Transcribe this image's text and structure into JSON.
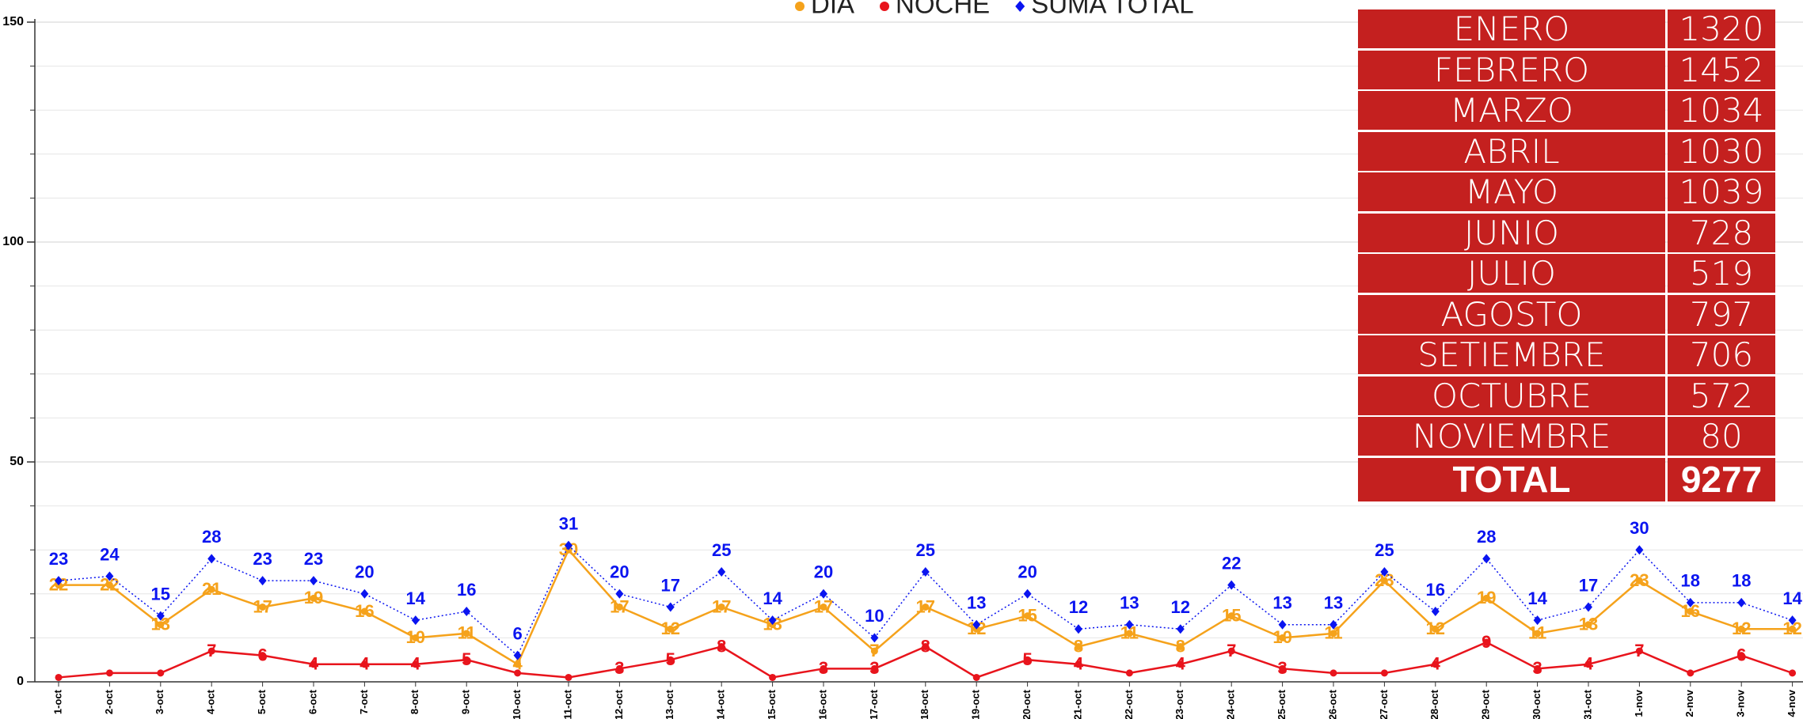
{
  "chart_data": {
    "type": "line",
    "legend": "top",
    "categories": [
      "1-oct",
      "2-oct",
      "3-oct",
      "4-oct",
      "5-oct",
      "6-oct",
      "7-oct",
      "8-oct",
      "9-oct",
      "10-oct",
      "11-oct",
      "12-oct",
      "13-oct",
      "14-oct",
      "15-oct",
      "16-oct",
      "17-oct",
      "18-oct",
      "19-oct",
      "20-oct",
      "21-oct",
      "22-oct",
      "23-oct",
      "24-oct",
      "25-oct",
      "26-oct",
      "27-oct",
      "28-oct",
      "29-oct",
      "30-oct",
      "31-oct",
      "1-nov",
      "2-nov",
      "3-nov",
      "4-nov"
    ],
    "series": [
      {
        "name": "DIA",
        "color": "#f5a21b",
        "marker": "circle",
        "line_style": "solid",
        "values": [
          22,
          22,
          13,
          21,
          17,
          19,
          16,
          10,
          11,
          4,
          30,
          17,
          12,
          17,
          13,
          17,
          7,
          17,
          12,
          15,
          8,
          11,
          8,
          15,
          10,
          11,
          23,
          12,
          19,
          11,
          13,
          23,
          16,
          12,
          12
        ]
      },
      {
        "name": "NOCHE",
        "color": "#e8141c",
        "marker": "circle",
        "line_style": "solid",
        "values": [
          1,
          2,
          2,
          7,
          6,
          4,
          4,
          4,
          5,
          2,
          1,
          3,
          5,
          8,
          1,
          3,
          3,
          8,
          1,
          5,
          4,
          2,
          4,
          7,
          3,
          2,
          2,
          4,
          9,
          3,
          4,
          7,
          2,
          6,
          2
        ],
        "value_labels": [
          null,
          null,
          null,
          "7",
          "6",
          "4",
          "4",
          "4",
          "5",
          null,
          null,
          "3",
          "5",
          "8",
          null,
          "3",
          "3",
          "8",
          null,
          "5",
          "4",
          null,
          "4",
          "7",
          "3",
          null,
          null,
          "4",
          "9",
          "3",
          "4",
          "7",
          null,
          "6",
          null
        ]
      },
      {
        "name": "SUMA TOTAL",
        "color": "#0a14f0",
        "marker": "diamond",
        "line_style": "dotted",
        "values": [
          23,
          24,
          15,
          28,
          23,
          23,
          20,
          14,
          16,
          6,
          31,
          20,
          17,
          25,
          14,
          20,
          10,
          25,
          13,
          20,
          12,
          13,
          12,
          22,
          13,
          13,
          25,
          16,
          28,
          14,
          17,
          30,
          18,
          18,
          14
        ]
      }
    ],
    "ylim": [
      0,
      150
    ],
    "yticks": [
      0,
      50,
      100,
      150
    ],
    "minor_yticks": [
      10,
      20,
      30,
      40,
      60,
      70,
      80,
      90,
      110,
      120,
      130,
      140
    ],
    "grid": true
  },
  "table": {
    "rows": [
      [
        "ENERO",
        1320
      ],
      [
        "FEBRERO",
        1452
      ],
      [
        "MARZO",
        1034
      ],
      [
        "ABRIL",
        1030
      ],
      [
        "MAYO",
        1039
      ],
      [
        "JUNIO",
        728
      ],
      [
        "JULIO",
        519
      ],
      [
        "AGOSTO",
        797
      ],
      [
        "SETIEMBRE",
        706
      ],
      [
        "OCTUBRE",
        572
      ],
      [
        "NOVIEMBRE",
        80
      ]
    ],
    "total": [
      "TOTAL",
      9277
    ]
  }
}
